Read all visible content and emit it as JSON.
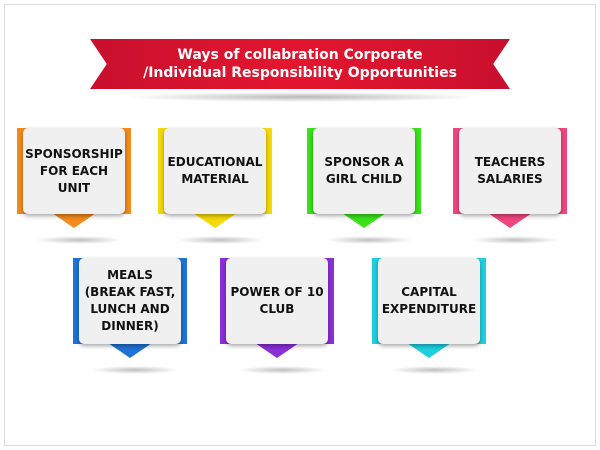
{
  "title": {
    "line1": "Ways of collabration Corporate",
    "line2": "/Individual Responsibility Opportunities"
  },
  "colors": {
    "banner": "#e4162f",
    "orange": "#f28a1c",
    "yellow": "#f5d90a",
    "green": "#39e21a",
    "pink": "#f0457e",
    "blue": "#1e73d6",
    "purple": "#8b2fd6",
    "cyan": "#1fcfe0"
  },
  "cards": [
    {
      "label": "SPONSORSHIP FOR EACH UNIT"
    },
    {
      "label": "EDUCATIONAL MATERIAL"
    },
    {
      "label": "SPONSOR A GIRL CHILD"
    },
    {
      "label": "TEACHERS SALARIES"
    },
    {
      "label": "MEALS (BREAK FAST, LUNCH AND DINNER)"
    },
    {
      "label": "POWER OF 10 CLUB"
    },
    {
      "label": "CAPITAL EXPENDITURE"
    }
  ]
}
